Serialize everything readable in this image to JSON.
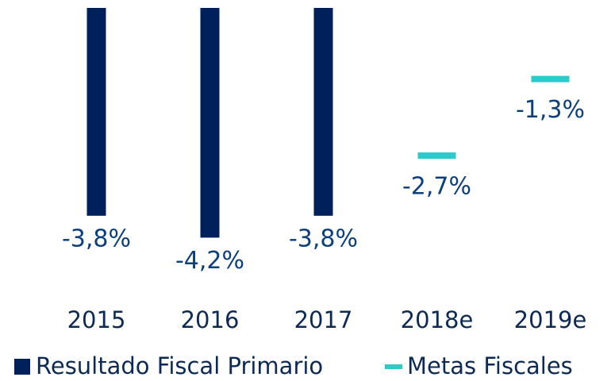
{
  "chart_data": {
    "type": "bar",
    "categories": [
      "2015",
      "2016",
      "2017",
      "2018e",
      "2019e"
    ],
    "series": [
      {
        "name": "Resultado Fiscal Primario",
        "color": "#00205b",
        "values": [
          -3.8,
          -4.2,
          -3.8,
          null,
          null
        ],
        "value_labels": [
          "-3,8%",
          "-4,2%",
          "-3,8%",
          null,
          null
        ]
      },
      {
        "name": "Metas Fiscales",
        "color": "#2ccacb",
        "values": [
          null,
          null,
          null,
          -2.7,
          -1.3
        ],
        "value_labels": [
          null,
          null,
          null,
          "-2,7%",
          "-1,3%"
        ]
      }
    ],
    "ylim": [
      -5,
      0
    ],
    "legend": "bottom"
  }
}
